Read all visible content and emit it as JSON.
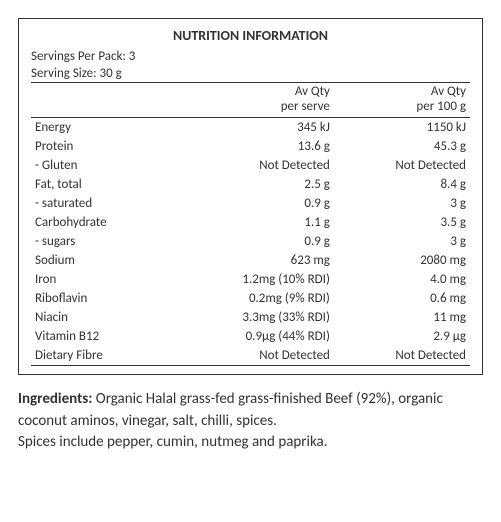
{
  "title": "NUTRITION INFORMATION",
  "meta": {
    "servings_per_pack_label": "Servings Per Pack: 3",
    "serving_size_label": "Serving Size: 30 g"
  },
  "headers": {
    "per_serve_l1": "Av Qty",
    "per_serve_l2": "per serve",
    "per_100_l1": "Av Qty",
    "per_100_l2": "per 100 g"
  },
  "rows": [
    {
      "name": "Energy",
      "serve": "345 kJ",
      "per100": "1150 kJ"
    },
    {
      "name": "Protein",
      "serve": "13.6 g",
      "per100": "45.3 g"
    },
    {
      "name": "- Gluten",
      "serve": "Not Detected",
      "per100": "Not Detected"
    },
    {
      "name": "Fat, total",
      "serve": "2.5 g",
      "per100": "8.4 g"
    },
    {
      "name": " - saturated",
      "serve": "0.9 g",
      "per100": "3 g"
    },
    {
      "name": "Carbohydrate",
      "serve": "1.1 g",
      "per100": "3.5 g"
    },
    {
      "name": " - sugars",
      "serve": "0.9 g",
      "per100": "3 g"
    },
    {
      "name": "Sodium",
      "serve": "623 mg",
      "per100": "2080 mg"
    },
    {
      "name": "Iron",
      "serve": "1.2mg (10% RDI)",
      "per100": "4.0 mg"
    },
    {
      "name": "Riboflavin",
      "serve": "0.2mg (9% RDI)",
      "per100": "0.6 mg"
    },
    {
      "name": "Niacin",
      "serve": "3.3mg (33% RDI)",
      "per100": "11 mg"
    },
    {
      "name": "Vitamin B12",
      "serve": "0.9µg (44% RDI)",
      "per100": "2.9 µg"
    },
    {
      "name": "Dietary Fibre",
      "serve": "Not Detected",
      "per100": "Not Detected"
    }
  ],
  "ingredients": {
    "label": "Ingredients:",
    "line1": " Organic Halal grass-fed grass-finished Beef (92%), organic coconut aminos, vinegar, salt, chilli, spices.",
    "line2": "Spices include pepper, cumin, nutmeg and paprika."
  },
  "style": {
    "border_color": "#333333",
    "text_color": "#333333",
    "bg_color": "#ffffff",
    "title_fontsize": 14,
    "body_fontsize": 13,
    "ingredients_fontsize": 15
  }
}
